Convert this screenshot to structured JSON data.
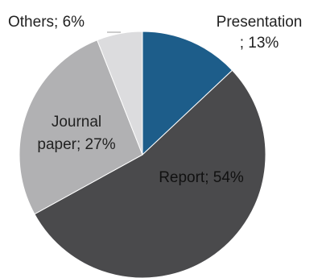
{
  "chart_data": {
    "type": "pie",
    "title": "",
    "slices": [
      {
        "name": "Presentation",
        "value": 13,
        "color": "#1d5d8a",
        "label_lines": [
          "Presentation",
          "; 13%"
        ]
      },
      {
        "name": "Report",
        "value": 54,
        "color": "#4a4a4c",
        "label_lines": [
          "Report; 54%"
        ]
      },
      {
        "name": "Journal paper",
        "value": 27,
        "color": "#b1b1b3",
        "label_lines": [
          "Journal",
          "paper; 27%"
        ]
      },
      {
        "name": "Others",
        "value": 6,
        "color": "#dcdcde",
        "label_lines": [
          "Others; 6%"
        ]
      }
    ],
    "legend": "none"
  }
}
